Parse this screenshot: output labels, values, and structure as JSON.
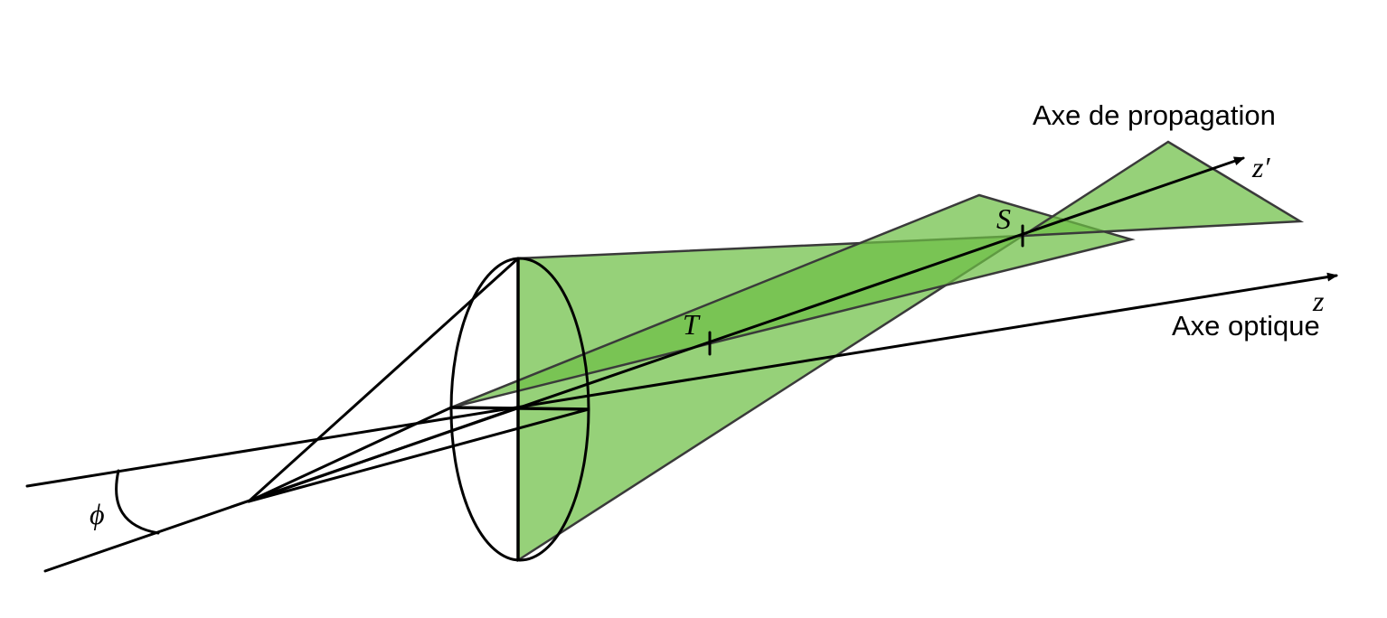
{
  "labels": {
    "propagation_axis": "Axe de propagation",
    "optical_axis": "Axe optique",
    "z_prime": "z′",
    "z": "z",
    "point_s": "S",
    "point_t": "T",
    "angle_phi": "ϕ"
  },
  "colors": {
    "beam_fill": "#6dbf45",
    "beam_stroke": "#3a3a3a",
    "line": "#000000"
  }
}
